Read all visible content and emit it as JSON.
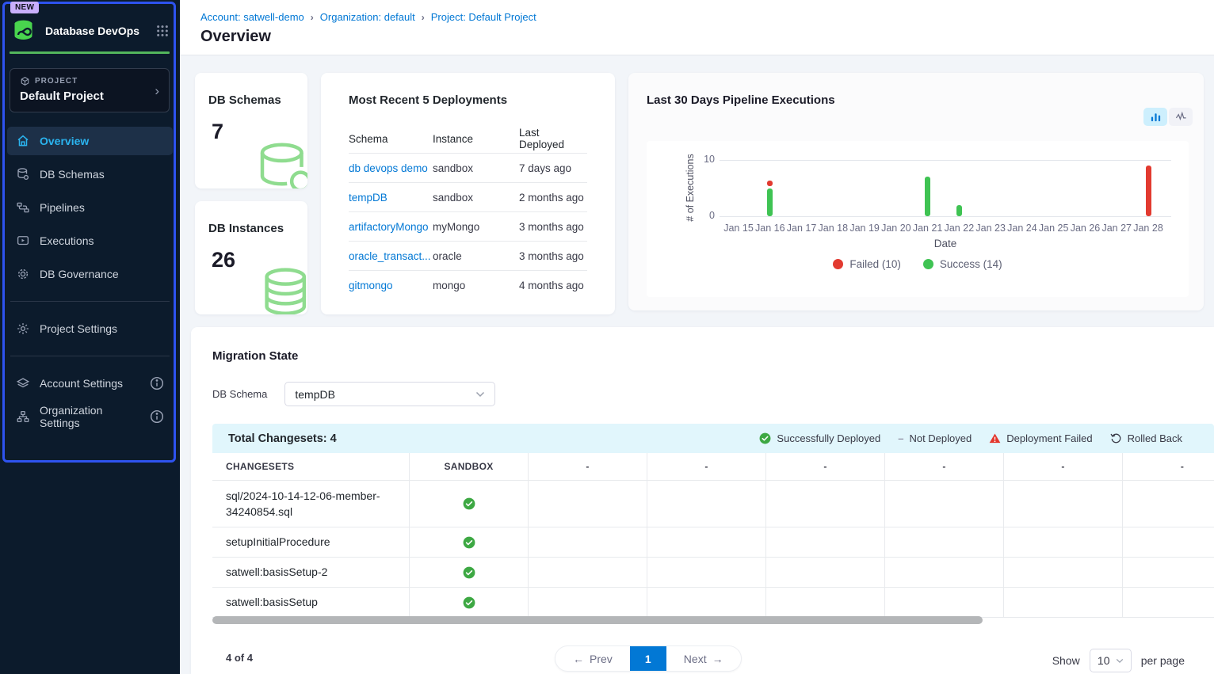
{
  "colors": {
    "accent_blue": "#0278d5",
    "sidebar_highlight": "#2e53f0",
    "active_nav": "#2ab4ef",
    "success_green": "#3fc353",
    "failed_red": "#e23a30",
    "band_cyan": "#e1f6fc"
  },
  "sidebar": {
    "badge": "NEW",
    "app_title": "Database DevOps",
    "project_label": "PROJECT",
    "project_name": "Default Project",
    "nav": [
      {
        "label": "Overview",
        "icon": "home-icon",
        "active": true
      },
      {
        "label": "DB Schemas",
        "icon": "database-icon",
        "active": false
      },
      {
        "label": "Pipelines",
        "icon": "pipeline-icon",
        "active": false
      },
      {
        "label": "Executions",
        "icon": "play-icon",
        "active": false
      },
      {
        "label": "DB Governance",
        "icon": "governance-icon",
        "active": false
      }
    ],
    "secondary_nav": [
      {
        "label": "Project Settings",
        "icon": "gear-icon"
      }
    ],
    "tertiary_nav": [
      {
        "label": "Account Settings",
        "icon": "layers-gear-icon",
        "info": true
      },
      {
        "label": "Organization Settings",
        "icon": "org-gear-icon",
        "info": true
      }
    ]
  },
  "header": {
    "breadcrumbs": [
      {
        "label": "Account: satwell-demo"
      },
      {
        "label": "Organization: default"
      },
      {
        "label": "Project: Default Project"
      }
    ],
    "title": "Overview"
  },
  "stats": [
    {
      "label": "DB Schemas",
      "value": "7",
      "icon": "database-green-icon"
    },
    {
      "label": "DB Instances",
      "value": "26",
      "icon": "database-stack-green-icon"
    }
  ],
  "recent_deployments": {
    "title": "Most Recent 5 Deployments",
    "columns": [
      "Schema",
      "Instance",
      "Last Deployed"
    ],
    "rows": [
      {
        "schema": "db devops demo",
        "instance": "sandbox",
        "last_deployed": "7 days ago"
      },
      {
        "schema": "tempDB",
        "instance": "sandbox",
        "last_deployed": "2 months ago"
      },
      {
        "schema": "artifactoryMongo",
        "instance": "myMongo",
        "last_deployed": "3 months ago"
      },
      {
        "schema": "oracle_transact...",
        "instance": "oracle",
        "last_deployed": "3 months ago"
      },
      {
        "schema": "gitmongo",
        "instance": "mongo",
        "last_deployed": "4 months ago"
      }
    ]
  },
  "chart_data": {
    "type": "bar",
    "title": "Last 30 Days Pipeline Executions",
    "xlabel": "Date",
    "ylabel": "# of Executions",
    "ylim": [
      0,
      10
    ],
    "yticks": [
      0,
      10
    ],
    "grid": true,
    "legend_position": "bottom",
    "categories": [
      "Jan 15",
      "Jan 16",
      "Jan 17",
      "Jan 18",
      "Jan 19",
      "Jan 20",
      "Jan 21",
      "Jan 22",
      "Jan 23",
      "Jan 24",
      "Jan 25",
      "Jan 26",
      "Jan 27",
      "Jan 28"
    ],
    "series": [
      {
        "name": "Success",
        "total": 14,
        "color": "#3fc353",
        "values": [
          0,
          5,
          0,
          0,
          0,
          0,
          7,
          2,
          0,
          0,
          0,
          0,
          0,
          0
        ]
      },
      {
        "name": "Failed",
        "total": 10,
        "color": "#e23a30",
        "values": [
          0,
          1,
          0,
          0,
          0,
          0,
          0,
          0,
          0,
          0,
          0,
          0,
          0,
          9
        ]
      }
    ],
    "legend": [
      {
        "label": "Failed (10)",
        "color": "#e23a30"
      },
      {
        "label": "Success (14)",
        "color": "#3fc353"
      }
    ]
  },
  "migration": {
    "title": "Migration State",
    "db_schema_label": "DB Schema",
    "db_schema_value": "tempDB",
    "total_changesets": "Total Changesets: 4",
    "legend": [
      {
        "label": "Successfully Deployed",
        "icon": "check-circle-icon"
      },
      {
        "label": "Not Deployed",
        "icon": "dash-icon",
        "dash": "–"
      },
      {
        "label": "Deployment Failed",
        "icon": "warning-triangle-icon"
      },
      {
        "label": "Rolled Back",
        "icon": "rollback-icon"
      }
    ],
    "columns": [
      "CHANGESETS",
      "SANDBOX",
      "-",
      "-",
      "-",
      "-",
      "-",
      "-"
    ],
    "rows": [
      {
        "changeset": "sql/2024-10-14-12-06-member-34240854.sql",
        "sandbox_status": "deployed"
      },
      {
        "changeset": "setupInitialProcedure",
        "sandbox_status": "deployed"
      },
      {
        "changeset": "satwell:basisSetup-2",
        "sandbox_status": "deployed"
      },
      {
        "changeset": "satwell:basisSetup",
        "sandbox_status": "deployed"
      }
    ]
  },
  "pagination": {
    "count": "4 of 4",
    "prev_label": "Prev",
    "page": "1",
    "next_label": "Next",
    "show_label": "Show",
    "page_size": "10",
    "per_page_label": "per page"
  }
}
